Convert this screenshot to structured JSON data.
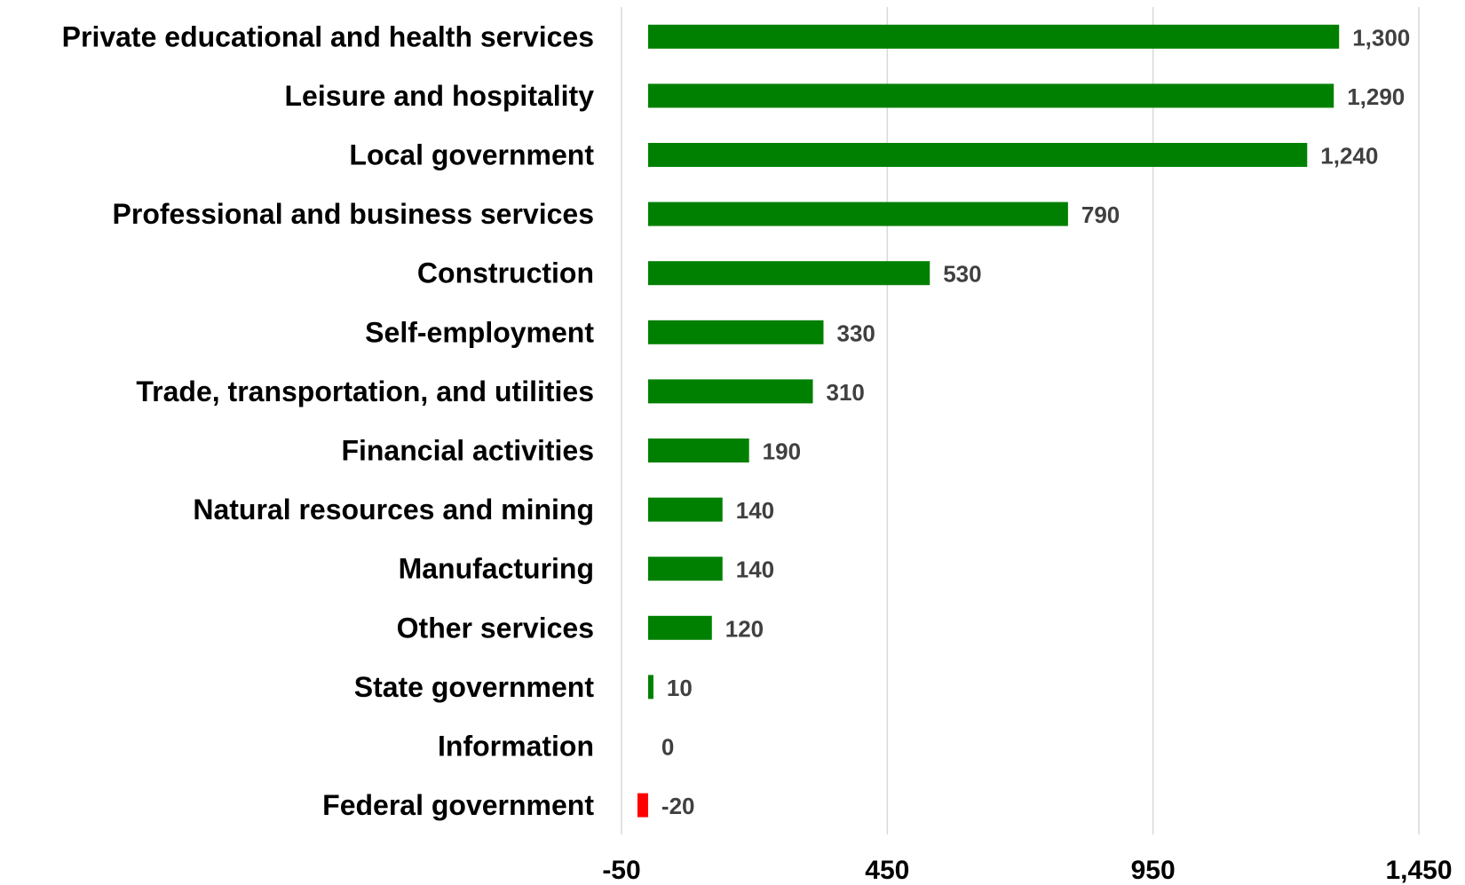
{
  "chart_data": {
    "type": "bar",
    "orientation": "horizontal",
    "categories": [
      "Private educational and health services",
      "Leisure and hospitality",
      "Local government",
      "Professional and business services",
      "Construction",
      "Self-employment",
      "Trade, transportation, and utilities",
      "Financial activities",
      "Natural resources and mining",
      "Manufacturing",
      "Other services",
      "State government",
      "Information",
      "Federal government"
    ],
    "values": [
      1300,
      1290,
      1240,
      790,
      530,
      330,
      310,
      190,
      140,
      140,
      120,
      10,
      0,
      -20
    ],
    "value_labels": [
      "1,300",
      "1,290",
      "1,240",
      "790",
      "530",
      "330",
      "310",
      "190",
      "140",
      "140",
      "120",
      "10",
      "0",
      "-20"
    ],
    "xlim": [
      -50,
      1450
    ],
    "xticks": [
      -50,
      450,
      950,
      1450
    ],
    "xtick_labels": [
      "-50",
      "450",
      "950",
      "1,450"
    ],
    "grid": "vertical",
    "legend": "none",
    "title": "",
    "xlabel": "",
    "ylabel": "",
    "colors": {
      "positive": "#008000",
      "negative": "#ff0000",
      "grid": "#d9d9d9"
    }
  }
}
